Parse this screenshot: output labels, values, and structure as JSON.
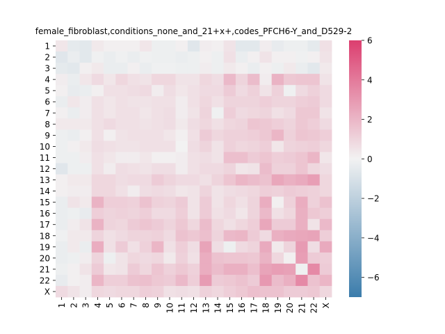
{
  "chart_data": {
    "type": "heatmap",
    "title": "female_fibroblast,conditions_none_and_21+x+,codes_PFCH6-Y_and_D529-2",
    "xlabel": "",
    "ylabel": "",
    "x_categories": [
      "1",
      "2",
      "3",
      "4",
      "5",
      "6",
      "7",
      "8",
      "9",
      "10",
      "11",
      "12",
      "13",
      "14",
      "15",
      "16",
      "17",
      "18",
      "19",
      "20",
      "21",
      "22",
      "X"
    ],
    "y_categories": [
      "1",
      "2",
      "3",
      "4",
      "5",
      "6",
      "7",
      "8",
      "9",
      "10",
      "11",
      "12",
      "13",
      "14",
      "15",
      "16",
      "17",
      "18",
      "19",
      "20",
      "21",
      "22",
      "X"
    ],
    "colorbar": {
      "min": -7,
      "max": 6,
      "ticks": [
        6,
        4,
        2,
        0,
        -2,
        -4,
        -6
      ],
      "tick_labels": [
        "6",
        "4",
        "2",
        "0",
        "−2",
        "−4",
        "−6"
      ],
      "low_color": "#3b7cab",
      "mid_color": "#f2f2f2",
      "high_color": "#dc3e6f"
    },
    "values": [
      [
        0.4,
        -0.5,
        -0.6,
        0.3,
        0.1,
        0.1,
        0.1,
        0.4,
        -0.2,
        -0.2,
        0.1,
        -0.7,
        0.2,
        0.1,
        0.5,
        -0.6,
        -0.6,
        0.2,
        -0.4,
        -0.2,
        -0.2,
        -0.5,
        0.6
      ],
      [
        -0.7,
        -0.3,
        -0.6,
        -0.1,
        -0.3,
        -0.1,
        -0.3,
        -0.1,
        -0.2,
        -0.2,
        -0.3,
        -0.2,
        0.1,
        -0.2,
        0.6,
        -0.3,
        0.1,
        0.5,
        0.1,
        0.1,
        -0.1,
        0.1,
        0.5
      ],
      [
        -0.5,
        -0.6,
        0.1,
        0.3,
        -0.3,
        -0.3,
        0.1,
        -0.3,
        -0.1,
        -0.1,
        -0.2,
        -0.2,
        0.2,
        -0.2,
        0.3,
        0.1,
        -0.3,
        0.1,
        -0.2,
        0.3,
        -0.3,
        -0.6,
        0.3
      ],
      [
        0.2,
        -0.3,
        0.4,
        0.8,
        0.4,
        0.9,
        0.6,
        0.5,
        0.9,
        0.9,
        0.5,
        0.5,
        0.9,
        0.7,
        1.9,
        1.0,
        1.8,
        0.2,
        2.1,
        1.4,
        1.5,
        1.5,
        0.5
      ],
      [
        0.1,
        -0.4,
        -0.3,
        0.1,
        0.6,
        0.6,
        0.7,
        0.8,
        0.2,
        0.7,
        0.4,
        0.6,
        0.8,
        0.8,
        1.3,
        0.8,
        1.1,
        0.5,
        1.1,
        -0.1,
        0.8,
        1.1,
        0.8
      ],
      [
        -0.3,
        0.4,
        0.2,
        0.6,
        0.4,
        0.6,
        0.5,
        0.5,
        0.6,
        0.6,
        0.2,
        0.6,
        0.9,
        0.6,
        1.0,
        1.0,
        1.0,
        1.2,
        1.0,
        1.0,
        1.2,
        1.3,
        0.8
      ],
      [
        0.1,
        -0.3,
        0.2,
        0.6,
        0.4,
        0.6,
        0.6,
        0.4,
        0.6,
        0.7,
        0.2,
        0.5,
        1.0,
        -0.1,
        1.2,
        0.8,
        0.9,
        1.0,
        0.6,
        0.8,
        1.4,
        1.4,
        0.5
      ],
      [
        0.3,
        0.3,
        0.3,
        0.6,
        0.8,
        0.6,
        0.6,
        0.5,
        0.6,
        0.7,
        0.3,
        0.7,
        0.9,
        0.6,
        0.9,
        1.0,
        1.5,
        1.4,
        1.2,
        1.0,
        1.4,
        1.2,
        0.8
      ],
      [
        -0.2,
        -0.3,
        0.1,
        0.6,
        0.1,
        0.5,
        0.6,
        0.6,
        0.6,
        0.4,
        0.1,
        0.6,
        1.3,
        0.9,
        1.1,
        1.1,
        1.2,
        1.4,
        2.0,
        1.1,
        1.5,
        1.4,
        1.2
      ],
      [
        -0.2,
        0.1,
        0.3,
        0.7,
        0.6,
        0.5,
        0.5,
        0.6,
        0.6,
        0.6,
        0.0,
        0.7,
        1.0,
        0.5,
        1.1,
        0.9,
        1.0,
        1.2,
        0.4,
        1.0,
        1.1,
        1.2,
        0.9
      ],
      [
        -0.2,
        -0.2,
        0.2,
        0.6,
        0.4,
        0.2,
        0.2,
        0.4,
        0.1,
        0.1,
        0.2,
        0.6,
        0.7,
        0.5,
        1.7,
        1.7,
        1.3,
        1.5,
        1.2,
        1.3,
        1.5,
        2.0,
        0.4
      ],
      [
        -0.7,
        -0.2,
        -0.2,
        0.6,
        0.2,
        0.7,
        0.6,
        0.5,
        0.7,
        0.7,
        0.2,
        0.6,
        0.8,
        0.8,
        1.0,
        0.4,
        0.5,
        1.8,
        1.1,
        1.1,
        1.5,
        0.9,
        0.7
      ],
      [
        0.1,
        0.3,
        0.3,
        0.9,
        0.9,
        0.7,
        0.8,
        0.8,
        1.3,
        1.0,
        0.8,
        0.8,
        0.6,
        1.0,
        1.5,
        2.0,
        1.8,
        1.6,
        2.5,
        2.2,
        2.4,
        2.8,
        0.9
      ],
      [
        0.1,
        0.2,
        0.2,
        0.9,
        0.9,
        0.6,
        0.2,
        0.7,
        0.8,
        0.7,
        0.4,
        0.5,
        1.0,
        0.5,
        0.7,
        0.8,
        0.9,
        1.2,
        1.1,
        1.3,
        1.2,
        1.1,
        0.9
      ],
      [
        -0.3,
        0.5,
        0.3,
        2.1,
        1.2,
        1.2,
        1.1,
        1.6,
        1.1,
        1.0,
        1.3,
        0.5,
        1.3,
        0.5,
        0.9,
        0.6,
        1.0,
        2.3,
        0.1,
        1.1,
        2.3,
        1.1,
        1.6
      ],
      [
        -0.3,
        -0.2,
        -0.4,
        1.2,
        1.0,
        1.1,
        1.0,
        1.2,
        0.8,
        0.8,
        1.2,
        0.5,
        1.3,
        0.6,
        0.8,
        0.4,
        1.0,
        1.9,
        0.6,
        0.9,
        2.2,
        1.4,
        1.2
      ],
      [
        -0.3,
        0.2,
        0.5,
        2.1,
        1.0,
        0.9,
        1.3,
        1.5,
        1.3,
        1.0,
        1.4,
        0.9,
        1.8,
        0.9,
        0.6,
        0.9,
        1.2,
        2.5,
        1.3,
        1.3,
        2.2,
        0.5,
        1.9
      ],
      [
        -0.1,
        0.3,
        0.3,
        1.0,
        0.6,
        0.8,
        1.0,
        1.0,
        1.1,
        0.8,
        1.6,
        1.4,
        1.7,
        1.0,
        1.9,
        2.0,
        1.3,
        0.8,
        2.2,
        2.4,
        2.5,
        2.6,
        1.2
      ],
      [
        -0.3,
        0.3,
        -0.3,
        2.3,
        0.6,
        1.3,
        0.6,
        1.1,
        2.0,
        0.6,
        1.2,
        0.7,
        2.6,
        0.7,
        -0.2,
        0.8,
        1.0,
        2.4,
        0.3,
        1.0,
        2.9,
        0.7,
        2.4
      ],
      [
        -0.3,
        -0.2,
        0.2,
        1.0,
        -0.2,
        0.5,
        0.9,
        0.8,
        0.9,
        0.3,
        1.1,
        0.6,
        2.3,
        1.6,
        1.5,
        1.5,
        1.4,
        2.1,
        0.9,
        0.1,
        2.8,
        1.3,
        1.2
      ],
      [
        -0.2,
        0.1,
        0.5,
        1.3,
        0.4,
        0.5,
        1.3,
        0.9,
        1.5,
        1.1,
        1.4,
        1.1,
        2.3,
        1.8,
        2.2,
        2.2,
        1.7,
        2.6,
        2.8,
        2.7,
        -0.1,
        3.5,
        1.3
      ],
      [
        -0.4,
        0.1,
        0.2,
        2.0,
        1.2,
        1.2,
        1.6,
        1.7,
        1.4,
        1.3,
        1.9,
        1.2,
        2.9,
        1.3,
        1.4,
        1.6,
        1.3,
        3.0,
        1.8,
        2.2,
        3.5,
        1.6,
        2.0
      ],
      [
        0.8,
        0.5,
        0.2,
        0.9,
        0.8,
        0.9,
        0.9,
        1.2,
        1.1,
        0.6,
        0.7,
        0.6,
        1.1,
        0.9,
        1.2,
        1.4,
        1.7,
        1.6,
        1.6,
        1.3,
        1.3,
        1.4,
        0.9
      ]
    ]
  }
}
